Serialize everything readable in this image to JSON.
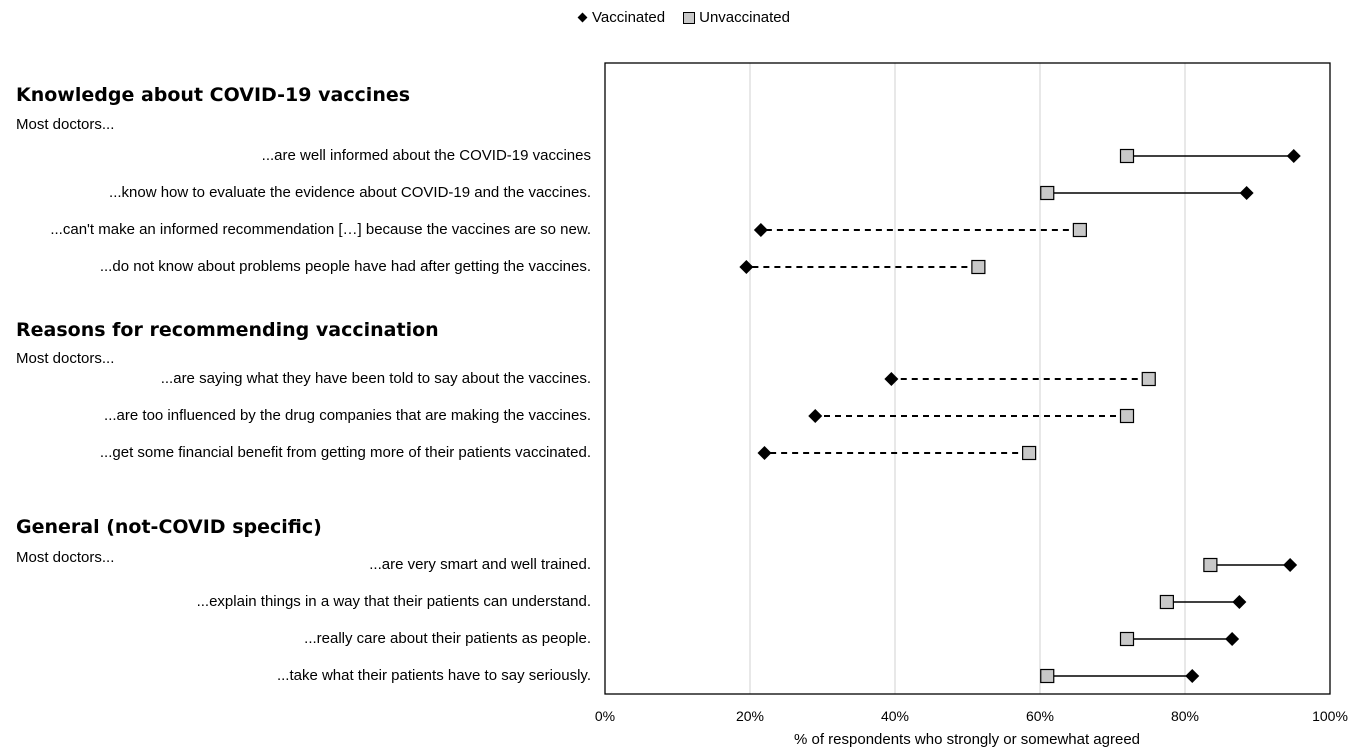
{
  "legend": {
    "vaccinated": "Vaccinated",
    "unvaccinated": "Unvaccinated"
  },
  "sections": [
    {
      "title": "Knowledge about COVID-19 vaccines",
      "intro": "Most doctors..."
    },
    {
      "title": "Reasons for recommending vaccination",
      "intro": "Most doctors..."
    },
    {
      "title": "General (not-COVID specific)",
      "intro": "Most doctors..."
    }
  ],
  "rows": [
    {
      "label": "...are well informed about the COVID-19 vaccines",
      "vaccinated": 95,
      "unvaccinated": 72,
      "line": "solid"
    },
    {
      "label": "...know how to evaluate the evidence about COVID-19 and the vaccines.",
      "vaccinated": 88.5,
      "unvaccinated": 61,
      "line": "solid"
    },
    {
      "label": "...can't make an informed recommendation […] because the vaccines are so new.",
      "vaccinated": 21.5,
      "unvaccinated": 65.5,
      "line": "dashed"
    },
    {
      "label": "...do not know about problems people have had after getting the vaccines.",
      "vaccinated": 19.5,
      "unvaccinated": 51.5,
      "line": "dashed"
    },
    {
      "label": "...are saying what they have been told to say about the vaccines.",
      "vaccinated": 39.5,
      "unvaccinated": 75,
      "line": "dashed"
    },
    {
      "label": "...are too influenced by the drug companies that are making the vaccines.",
      "vaccinated": 29,
      "unvaccinated": 72,
      "line": "dashed"
    },
    {
      "label": "...get some financial benefit from getting more of their patients vaccinated.",
      "vaccinated": 22,
      "unvaccinated": 58.5,
      "line": "dashed"
    },
    {
      "label": "...are very smart and well trained.",
      "vaccinated": 94.5,
      "unvaccinated": 83.5,
      "line": "solid"
    },
    {
      "label": "...explain things in a way that their patients can understand.",
      "vaccinated": 87.5,
      "unvaccinated": 77.5,
      "line": "solid"
    },
    {
      "label": "...really care about their patients as people.",
      "vaccinated": 86.5,
      "unvaccinated": 72,
      "line": "solid"
    },
    {
      "label": "...take what their patients have to say seriously.",
      "vaccinated": 81,
      "unvaccinated": 61,
      "line": "solid"
    }
  ],
  "chart_data": {
    "type": "scatter",
    "xlabel": "% of respondents who strongly or somewhat agreed",
    "xlim": [
      0,
      100
    ],
    "xticks": [
      "0%",
      "20%",
      "40%",
      "60%",
      "80%",
      "100%"
    ],
    "grid": true,
    "legend_position": "top",
    "series": [
      {
        "name": "Vaccinated",
        "marker": "diamond",
        "color": "#000000",
        "values": [
          95,
          88.5,
          21.5,
          19.5,
          39.5,
          29,
          22,
          94.5,
          87.5,
          86.5,
          81
        ]
      },
      {
        "name": "Unvaccinated",
        "marker": "square",
        "color": "#c8c8c8",
        "values": [
          72,
          61,
          65.5,
          51.5,
          75,
          72,
          58.5,
          83.5,
          77.5,
          72,
          61
        ]
      }
    ]
  },
  "colors": {
    "grid": "#d9d9d9",
    "square_fill": "#c8c8c8",
    "marker": "#000000"
  }
}
